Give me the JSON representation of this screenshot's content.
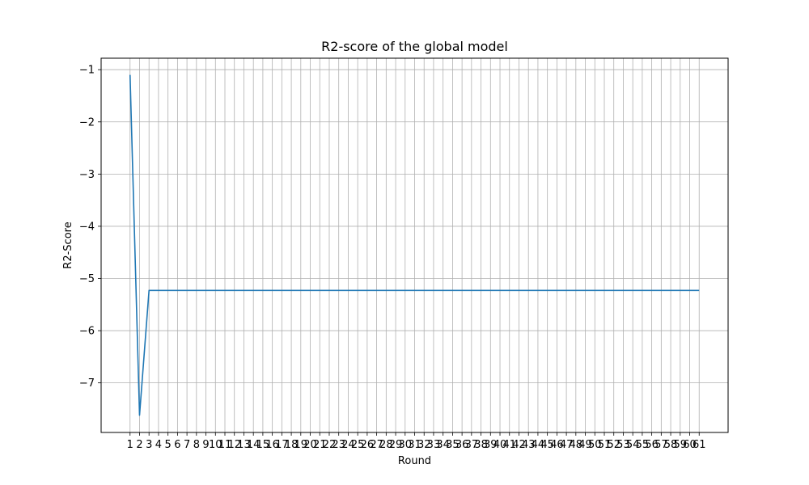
{
  "chart_data": {
    "type": "line",
    "title": "R2-score of the global model",
    "xlabel": "Round",
    "ylabel": "R2-Score",
    "x": [
      1,
      2,
      3,
      4,
      5,
      6,
      7,
      8,
      9,
      10,
      11,
      12,
      13,
      14,
      15,
      16,
      17,
      18,
      19,
      20,
      21,
      22,
      23,
      24,
      25,
      26,
      27,
      28,
      29,
      30,
      31,
      32,
      33,
      34,
      35,
      36,
      37,
      38,
      39,
      40,
      41,
      42,
      43,
      44,
      45,
      46,
      47,
      48,
      49,
      50,
      51,
      52,
      53,
      54,
      55,
      56,
      57,
      58,
      59,
      60,
      61
    ],
    "series": [
      {
        "values": [
          -1.1,
          -7.62,
          -5.23,
          -5.23,
          -5.23,
          -5.23,
          -5.23,
          -5.23,
          -5.23,
          -5.23,
          -5.23,
          -5.23,
          -5.23,
          -5.23,
          -5.23,
          -5.23,
          -5.23,
          -5.23,
          -5.23,
          -5.23,
          -5.23,
          -5.23,
          -5.23,
          -5.23,
          -5.23,
          -5.23,
          -5.23,
          -5.23,
          -5.23,
          -5.23,
          -5.23,
          -5.23,
          -5.23,
          -5.23,
          -5.23,
          -5.23,
          -5.23,
          -5.23,
          -5.23,
          -5.23,
          -5.23,
          -5.23,
          -5.23,
          -5.23,
          -5.23,
          -5.23,
          -5.23,
          -5.23,
          -5.23,
          -5.23,
          -5.23,
          -5.23,
          -5.23,
          -5.23,
          -5.23,
          -5.23,
          -5.23,
          -5.23,
          -5.23,
          -5.23,
          -5.23
        ],
        "color": "#1f77b4"
      }
    ],
    "xlim": [
      -2.05,
      64.05
    ],
    "ylim": [
      -7.95,
      -0.78
    ],
    "yticks": [
      -7,
      -6,
      -5,
      -4,
      -3,
      -2,
      -1
    ],
    "grid": true
  }
}
